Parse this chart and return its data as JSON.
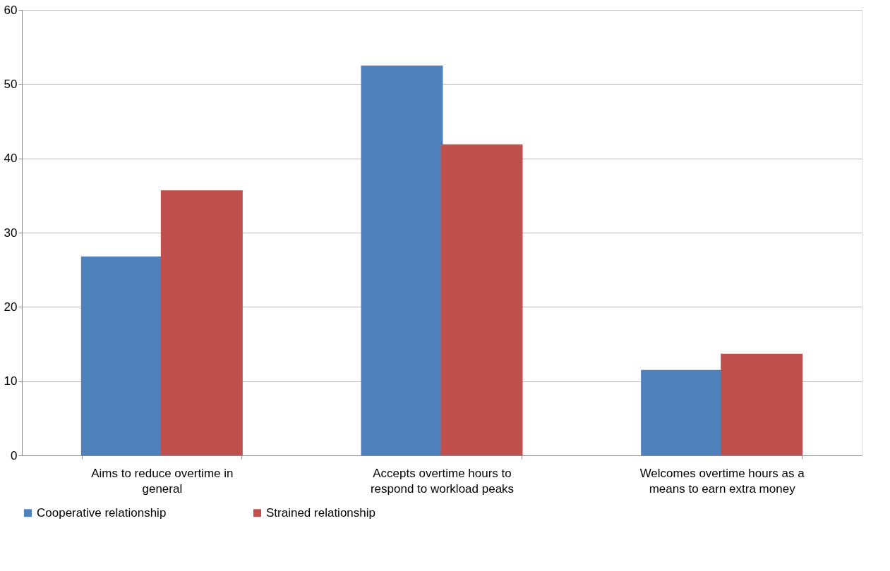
{
  "chart_data": {
    "type": "bar",
    "categories": [
      "Aims to reduce overtime in general",
      "Accepts overtime hours to respond to workload peaks",
      "Welcomes overtime hours as a means to earn extra money"
    ],
    "series": [
      {
        "name": "Cooperative relationship",
        "color": "#4f81bd",
        "values": [
          26.8,
          52.5,
          11.5
        ]
      },
      {
        "name": "Strained relationship",
        "color": "#c0504d",
        "values": [
          35.7,
          41.9,
          13.7
        ]
      }
    ],
    "ylim": [
      0,
      60
    ],
    "yticks": [
      0,
      10,
      20,
      30,
      40,
      50,
      60
    ],
    "grid": "y",
    "legend": "bottom"
  }
}
